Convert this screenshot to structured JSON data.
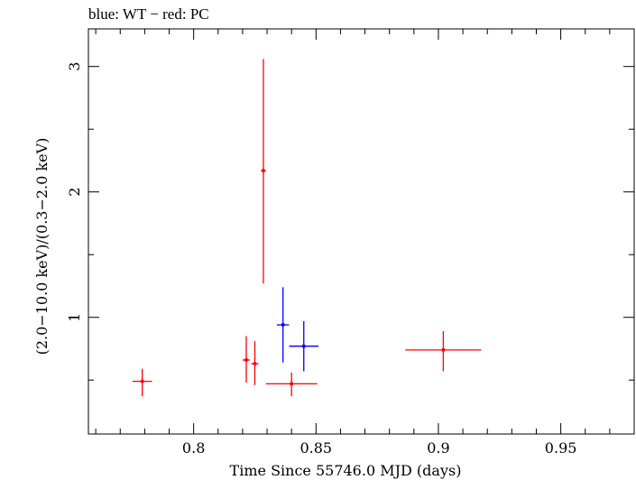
{
  "chart_data": {
    "type": "scatter",
    "title": "blue: WT − red: PC",
    "xlabel": "Time Since 55746.0 MJD (days)",
    "ylabel": "(2.0−10.0 keV)/(0.3−2.0 keV)",
    "xlim": [
      0.757,
      0.98
    ],
    "ylim": [
      0.07,
      3.3
    ],
    "x_ticks": [
      0.8,
      0.85,
      0.9,
      0.95
    ],
    "x_tick_labels": [
      "0.8",
      "0.85",
      "0.9",
      "0.95"
    ],
    "y_ticks": [
      1,
      2,
      3
    ],
    "y_tick_labels": [
      "1",
      "2",
      "3"
    ],
    "grid": false,
    "series": [
      {
        "name": "PC",
        "color": "#ff0000",
        "points": [
          {
            "x": 0.779,
            "xerr": 0.004,
            "y": 0.49,
            "yerr": [
              0.12,
              0.1
            ]
          },
          {
            "x": 0.8215,
            "xerr": 0.0015,
            "y": 0.66,
            "yerr": [
              0.18,
              0.19
            ]
          },
          {
            "x": 0.825,
            "xerr": 0.0015,
            "y": 0.63,
            "yerr": [
              0.17,
              0.18
            ]
          },
          {
            "x": 0.8285,
            "xerr": 0.001,
            "y": 2.17,
            "yerr": [
              0.9,
              0.89
            ]
          },
          {
            "x": 0.84,
            "xerr": 0.0105,
            "y": 0.47,
            "yerr": [
              0.1,
              0.09
            ]
          },
          {
            "x": 0.902,
            "xerr": 0.0155,
            "y": 0.74,
            "yerr": [
              0.17,
              0.15
            ]
          }
        ]
      },
      {
        "name": "WT",
        "color": "#0000ff",
        "points": [
          {
            "x": 0.8365,
            "xerr": 0.0025,
            "y": 0.94,
            "yerr": [
              0.3,
              0.3
            ]
          },
          {
            "x": 0.845,
            "xerr": 0.006,
            "y": 0.77,
            "yerr": [
              0.2,
              0.2
            ]
          }
        ]
      }
    ]
  }
}
